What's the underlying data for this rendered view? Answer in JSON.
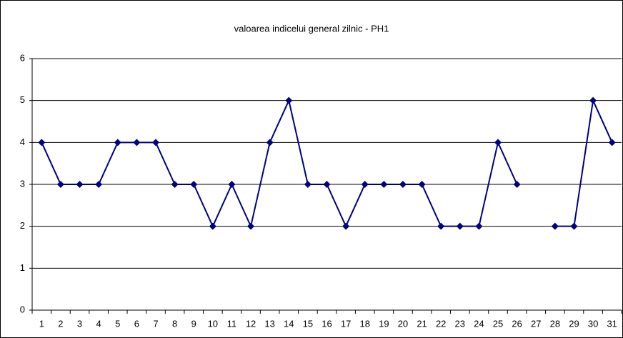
{
  "chart_data": {
    "type": "line",
    "title": "valoarea indicelui general zilnic - PH1",
    "categories": [
      "1",
      "2",
      "3",
      "4",
      "5",
      "6",
      "7",
      "8",
      "9",
      "10",
      "11",
      "12",
      "13",
      "14",
      "15",
      "16",
      "17",
      "18",
      "19",
      "20",
      "21",
      "22",
      "23",
      "24",
      "25",
      "26",
      "27",
      "28",
      "29",
      "30",
      "31"
    ],
    "series": [
      {
        "name": "PH1",
        "color": "#000080",
        "values": [
          4,
          3,
          3,
          3,
          4,
          4,
          4,
          3,
          3,
          2,
          3,
          2,
          4,
          5,
          3,
          3,
          2,
          3,
          3,
          3,
          3,
          2,
          2,
          2,
          4,
          3,
          null,
          2,
          2,
          5,
          4
        ]
      }
    ],
    "ylim": [
      0,
      6
    ],
    "yticks": [
      0,
      1,
      2,
      3,
      4,
      5,
      6
    ],
    "grid": true
  }
}
